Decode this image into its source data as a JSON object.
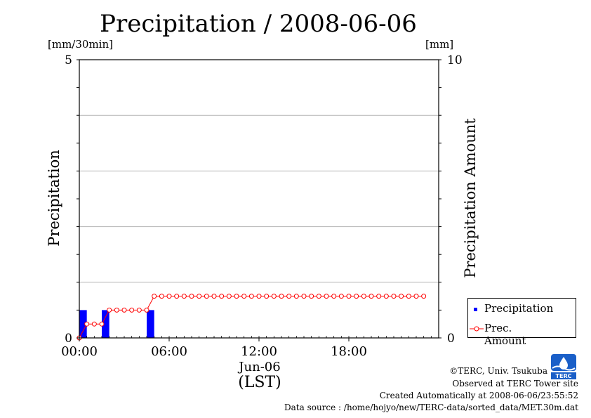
{
  "chart_data": {
    "type": "bar+line",
    "title": "Precipitation / 2008-06-06",
    "ylabel_left": "Precipitation",
    "ylabel_right": "Precipitation Amount",
    "left_unit": "[mm/30min]",
    "right_unit": "[mm]",
    "ylim_left": [
      0,
      5
    ],
    "ylim_right": [
      0,
      10
    ],
    "left_ticks": [
      "0",
      "5"
    ],
    "right_ticks": [
      "0",
      "10"
    ],
    "xlim_hours": [
      0,
      24
    ],
    "x_ticks": [
      {
        "hour": 0,
        "label": "00:00"
      },
      {
        "hour": 6,
        "label": "06:00"
      },
      {
        "hour": 12,
        "label": "12:00"
      },
      {
        "hour": 18,
        "label": "18:00"
      }
    ],
    "xlabel_date": "Jun-06",
    "xlabel_unit": "(LST)",
    "grid": true,
    "series": [
      {
        "name": "Precipitation",
        "type": "bar",
        "color": "#0000ff",
        "axis": "left",
        "values": [
          0.5,
          0,
          0,
          0.5,
          0,
          0,
          0,
          0,
          0,
          0.5,
          0,
          0,
          0,
          0,
          0,
          0,
          0,
          0,
          0,
          0,
          0,
          0,
          0,
          0,
          0,
          0,
          0,
          0,
          0,
          0,
          0,
          0,
          0,
          0,
          0,
          0,
          0,
          0,
          0,
          0,
          0,
          0,
          0,
          0,
          0,
          0,
          0
        ]
      },
      {
        "name": "Prec. Amount",
        "type": "line",
        "color": "#ff0000",
        "axis": "right",
        "values": [
          0,
          0.5,
          0.5,
          0.5,
          1.0,
          1.0,
          1.0,
          1.0,
          1.0,
          1.0,
          1.5,
          1.5,
          1.5,
          1.5,
          1.5,
          1.5,
          1.5,
          1.5,
          1.5,
          1.5,
          1.5,
          1.5,
          1.5,
          1.5,
          1.5,
          1.5,
          1.5,
          1.5,
          1.5,
          1.5,
          1.5,
          1.5,
          1.5,
          1.5,
          1.5,
          1.5,
          1.5,
          1.5,
          1.5,
          1.5,
          1.5,
          1.5,
          1.5,
          1.5,
          1.5,
          1.5,
          1.5
        ]
      }
    ],
    "legend": [
      "Precipitation",
      "Prec. Amount"
    ],
    "legend_position": "bottom-right"
  },
  "credits": [
    "©TERC, Univ. Tsukuba",
    "Observed at TERC Tower site",
    "Created Automatically at 2008-06-06/23:55:52",
    "Data source : /home/hojyo/new/TERC-data/sorted_data/MET.30m.dat"
  ],
  "logo": {
    "text": "TERC",
    "color": "#1a5fc8"
  }
}
